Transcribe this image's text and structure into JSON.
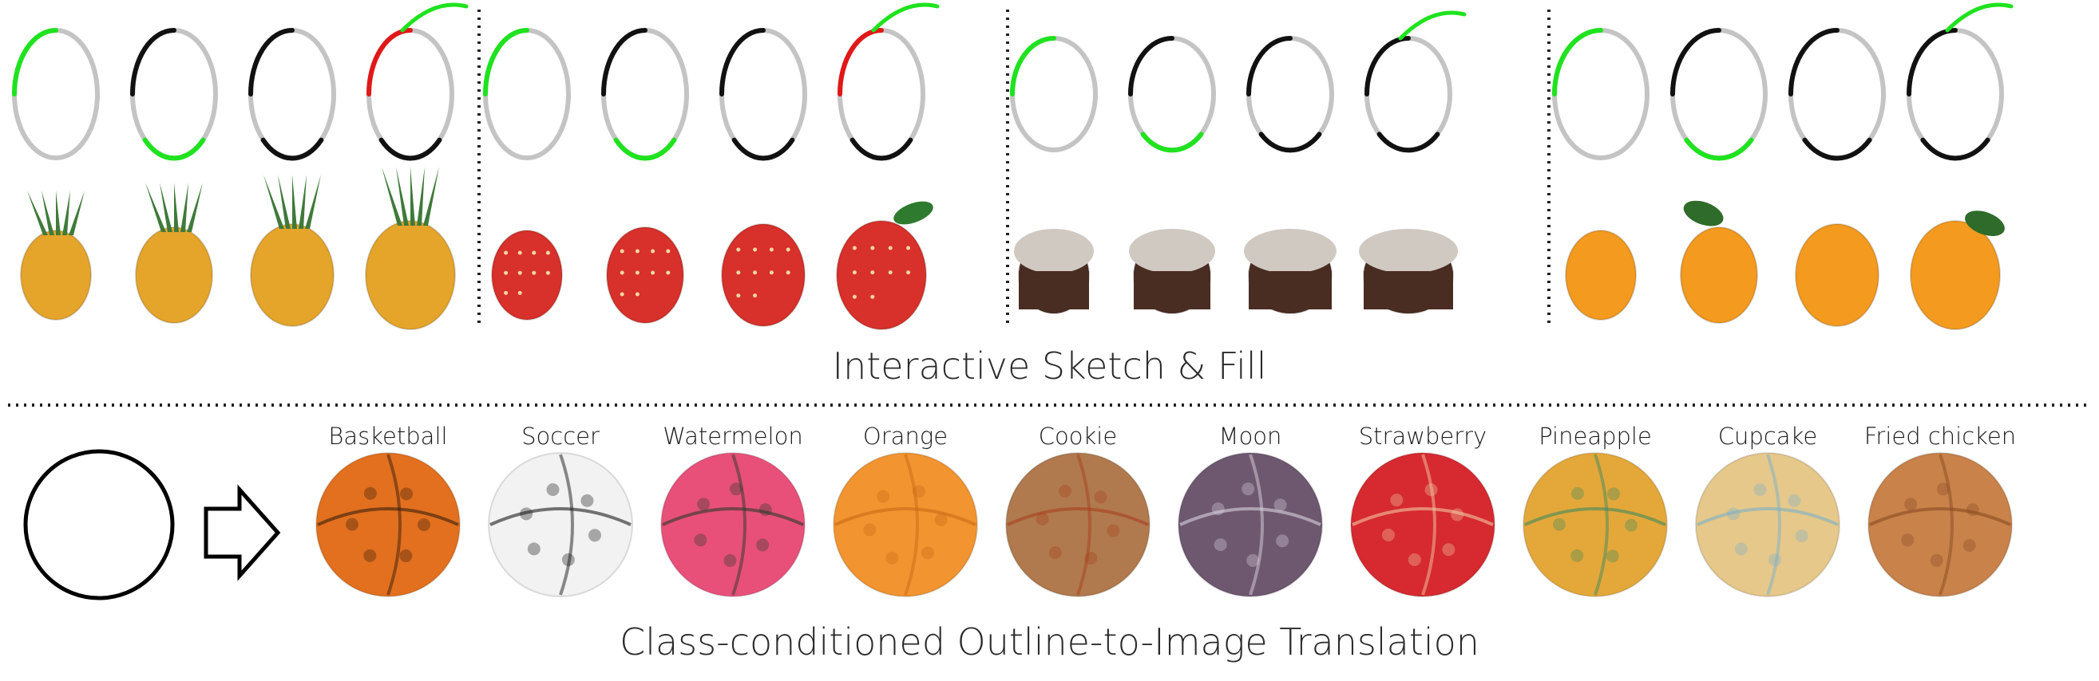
{
  "titles": {
    "sketch_fill": "Interactive Sketch & Fill",
    "outline_translation": "Class-conditioned Outline-to-Image Translation"
  },
  "groups": [
    {
      "name": "pineapple",
      "fill": "#e5a52a",
      "accent": "#3f7a3a"
    },
    {
      "name": "strawberry",
      "fill": "#d8302a",
      "accent": "#2e7a2e"
    },
    {
      "name": "cupcake",
      "fill": "#4a2d22",
      "accent": "#cfc9c2"
    },
    {
      "name": "orange",
      "fill": "#f39a1f",
      "accent": "#2f6b2a"
    }
  ],
  "stroke_colors": {
    "gray": "#c4c4c4",
    "green": "#1ee31e",
    "black": "#111111",
    "red": "#e01818"
  },
  "classes": [
    {
      "label": "Basketball",
      "color": "#e2701e",
      "detail": "#3a1e0e"
    },
    {
      "label": "Soccer",
      "color": "#f2f2f2",
      "detail": "#1a1a1a"
    },
    {
      "label": "Watermelon",
      "color": "#e8507a",
      "detail": "#2a3a2a"
    },
    {
      "label": "Orange",
      "color": "#f29430",
      "detail": "#c86a14"
    },
    {
      "label": "Cookie",
      "color": "#b07a4e",
      "detail": "#a8401e"
    },
    {
      "label": "Moon",
      "color": "#6e5870",
      "detail": "#d9d2dc"
    },
    {
      "label": "Strawberry",
      "color": "#d62a30",
      "detail": "#f2c8a0"
    },
    {
      "label": "Pineapple",
      "color": "#e4a83a",
      "detail": "#3f8a5e"
    },
    {
      "label": "Cupcake",
      "color": "#e6c88a",
      "detail": "#7ab0c8"
    },
    {
      "label": "Fried chicken",
      "color": "#c8824a",
      "detail": "#8a4a22"
    }
  ]
}
